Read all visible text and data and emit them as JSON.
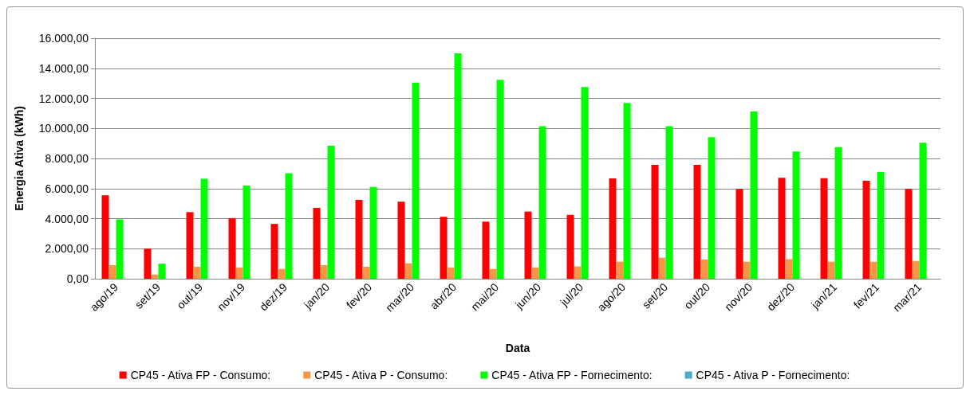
{
  "chart_data": {
    "type": "bar",
    "xlabel": "Data",
    "ylabel": "Energia Ativa (kWh)",
    "categories": [
      "ago/19",
      "set/19",
      "out/19",
      "nov/19",
      "dez/19",
      "jan/20",
      "fev/20",
      "mar/20",
      "abr/20",
      "mai/20",
      "jun/20",
      "jul/20",
      "ago/20",
      "set/20",
      "out/20",
      "nov/20",
      "dez/20",
      "jan/21",
      "fev/21",
      "mar/21"
    ],
    "series": [
      {
        "name": "CP45 - Ativa FP - Consumo:",
        "color": "#ff0000",
        "values": [
          5550,
          2000,
          4430,
          4030,
          3650,
          4720,
          5240,
          5130,
          4120,
          3800,
          4470,
          4250,
          6680,
          7570,
          7570,
          5970,
          6720,
          6690,
          6520,
          5970
        ]
      },
      {
        "name": "CP45 - Ativa P - Consumo:",
        "color": "#f79646",
        "values": [
          900,
          280,
          800,
          750,
          650,
          900,
          800,
          1020,
          750,
          650,
          750,
          820,
          1130,
          1400,
          1280,
          1130,
          1300,
          1130,
          1130,
          1180
        ]
      },
      {
        "name": "CP45 - Ativa FP - Fornecimento:",
        "color": "#00ff00",
        "values": [
          3950,
          1000,
          6650,
          6200,
          7020,
          8850,
          6100,
          13050,
          15000,
          13230,
          10150,
          12760,
          11700,
          10150,
          9420,
          11130,
          8470,
          8750,
          7100,
          9050
        ]
      },
      {
        "name": "CP45 - Ativa P - Fornecimento:",
        "color": "#4bacc6",
        "values": [
          0,
          0,
          0,
          0,
          0,
          0,
          0,
          0,
          0,
          0,
          0,
          0,
          0,
          0,
          0,
          0,
          0,
          0,
          0,
          0
        ]
      }
    ],
    "ylim": [
      0,
      16000
    ],
    "yticks": [
      {
        "value": 0,
        "label": "0,00"
      },
      {
        "value": 2000,
        "label": "2.000,00"
      },
      {
        "value": 4000,
        "label": "4.000,00"
      },
      {
        "value": 6000,
        "label": "6.000,00"
      },
      {
        "value": 8000,
        "label": "8.000,00"
      },
      {
        "value": 10000,
        "label": "10.000,00"
      },
      {
        "value": 12000,
        "label": "12.000,00"
      },
      {
        "value": 14000,
        "label": "14.000,00"
      },
      {
        "value": 16000,
        "label": "16.000,00"
      }
    ],
    "grid": "y",
    "legend": "bottom"
  }
}
